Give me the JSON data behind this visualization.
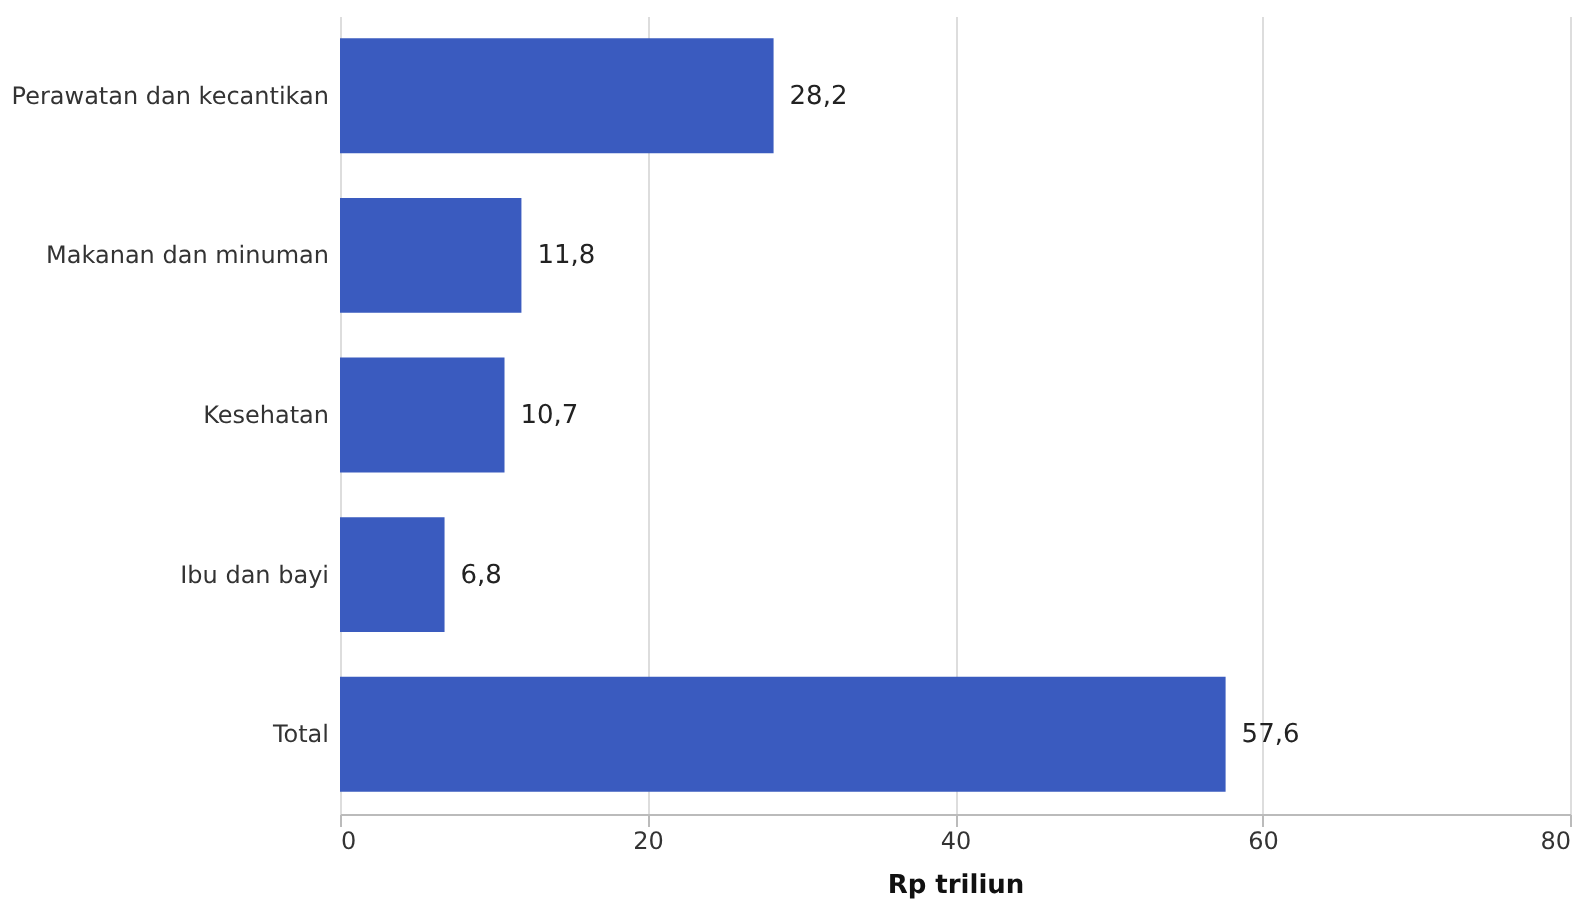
{
  "chart_data": {
    "type": "bar",
    "orientation": "horizontal",
    "xlabel": "Rp triliun",
    "categories": [
      "Perawatan dan kecantikan",
      "Makanan dan minuman",
      "Kesehatan",
      "Ibu dan bayi",
      "Total"
    ],
    "values": [
      28.2,
      11.8,
      10.7,
      6.8,
      57.6
    ],
    "value_labels": [
      "28,2",
      "11,8",
      "10,7",
      "6,8",
      "57,6"
    ],
    "color": "#3a5bbf",
    "xlim": [
      0,
      80
    ],
    "xticks": [
      0,
      20,
      40,
      60,
      80
    ],
    "grid": "x"
  }
}
